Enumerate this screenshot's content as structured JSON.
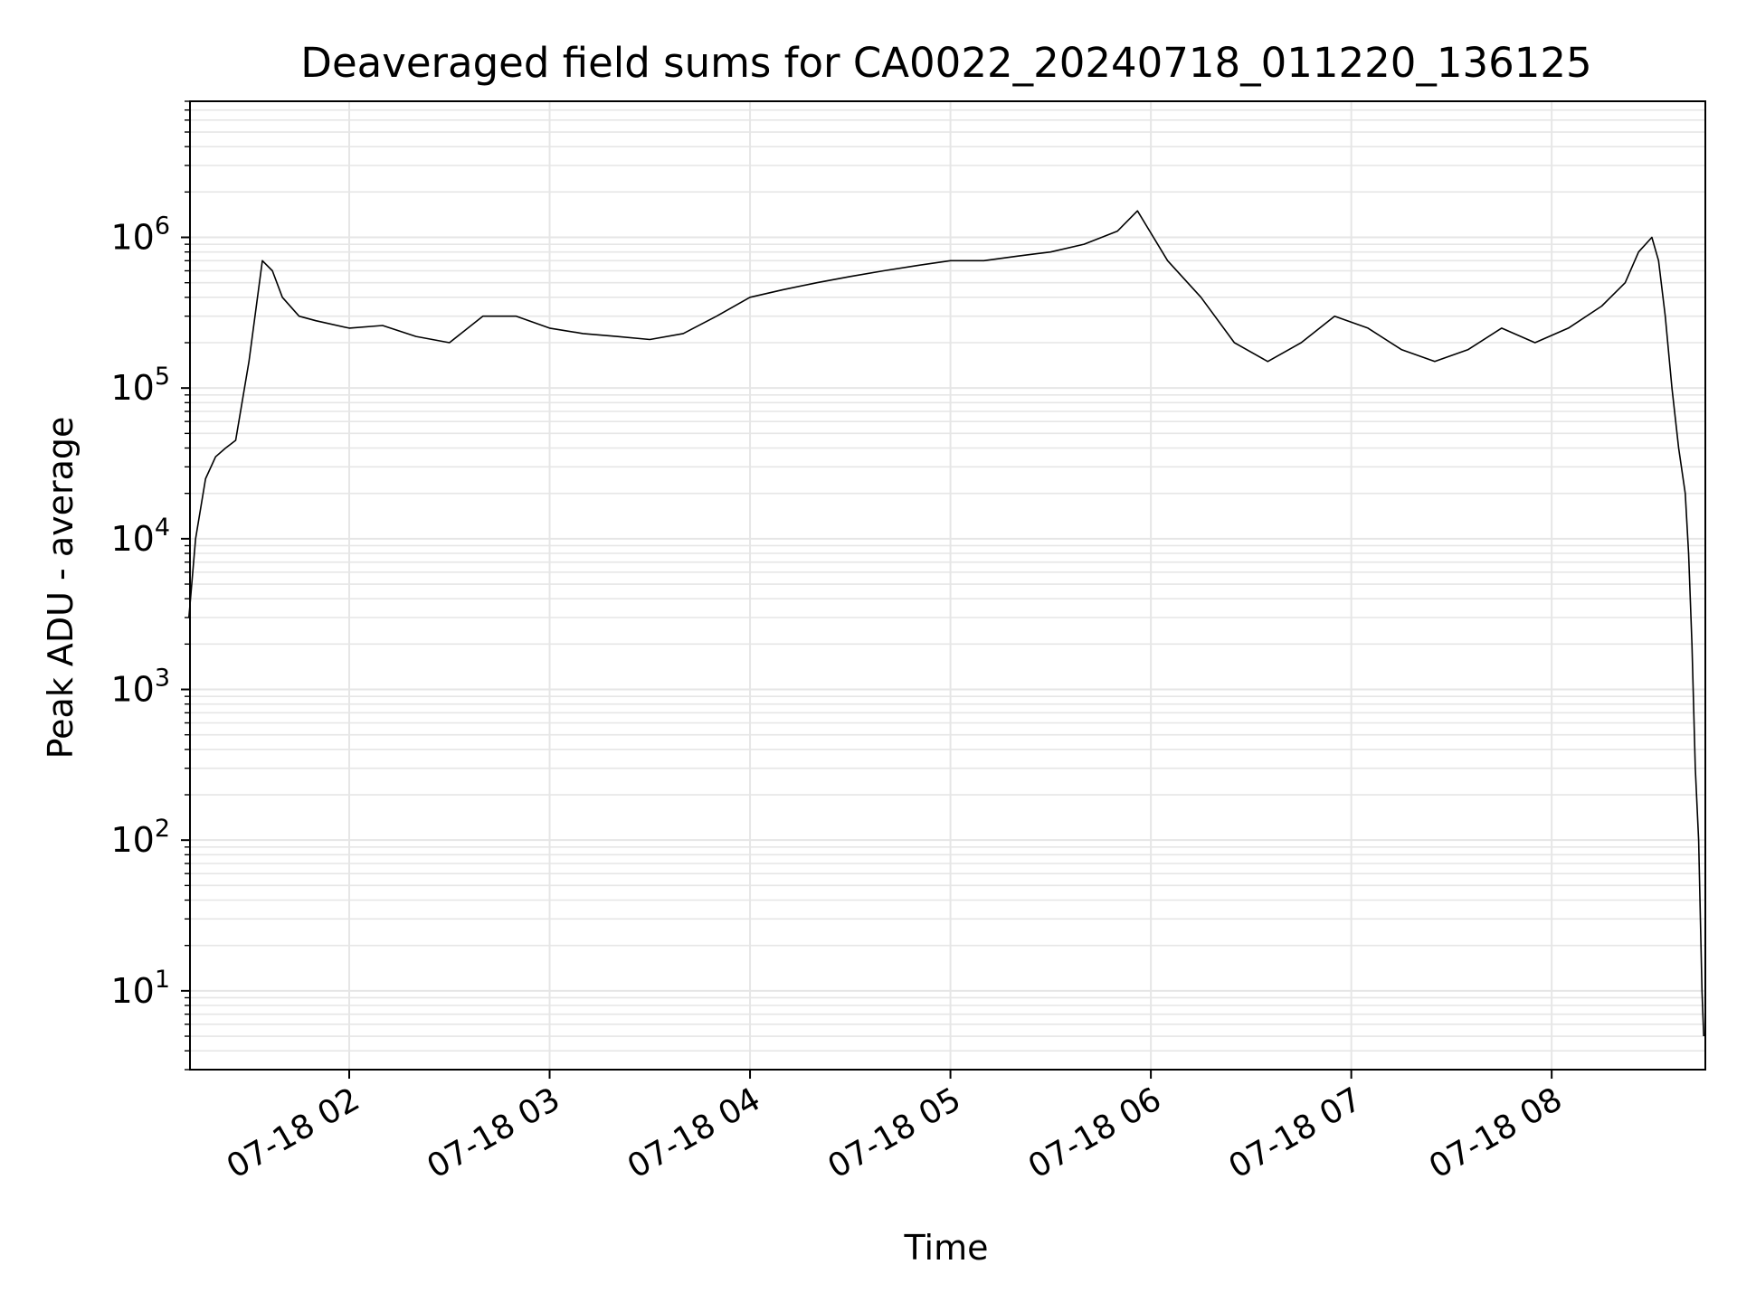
{
  "chart_data": {
    "type": "line",
    "title": "Deaveraged field sums for CA0022_20240718_011220_136125",
    "xlabel": "Time",
    "ylabel": "Peak ADU - average",
    "yscale": "log",
    "grid": true,
    "legend": "none",
    "xlim": [
      "2024-07-18 01:12:20",
      "2024-07-18 08:46:00"
    ],
    "ylim": [
      3,
      8000000
    ],
    "x_tick_labels": [
      "07-18 02",
      "07-18 03",
      "07-18 04",
      "07-18 05",
      "07-18 06",
      "07-18 07",
      "07-18 08"
    ],
    "x_tick_values": [
      "2024-07-18 02:00",
      "2024-07-18 03:00",
      "2024-07-18 04:00",
      "2024-07-18 05:00",
      "2024-07-18 06:00",
      "2024-07-18 07:00",
      "2024-07-18 08:00"
    ],
    "y_tick_labels": [
      {
        "base": "10",
        "exp": "1",
        "value": 10
      },
      {
        "base": "10",
        "exp": "2",
        "value": 100
      },
      {
        "base": "10",
        "exp": "3",
        "value": 1000
      },
      {
        "base": "10",
        "exp": "4",
        "value": 10000
      },
      {
        "base": "10",
        "exp": "5",
        "value": 100000
      },
      {
        "base": "10",
        "exp": "6",
        "value": 1000000
      }
    ],
    "line_color": "#000000",
    "grid_color": "#e6e6e6",
    "series": [
      {
        "x": [
          "2024-07-18 01:12",
          "2024-07-18 01:14",
          "2024-07-18 01:17",
          "2024-07-18 01:20",
          "2024-07-18 01:23",
          "2024-07-18 01:26",
          "2024-07-18 01:30",
          "2024-07-18 01:34",
          "2024-07-18 01:37",
          "2024-07-18 01:40",
          "2024-07-18 01:45",
          "2024-07-18 01:50",
          "2024-07-18 02:00",
          "2024-07-18 02:10",
          "2024-07-18 02:20",
          "2024-07-18 02:30",
          "2024-07-18 02:40",
          "2024-07-18 02:50",
          "2024-07-18 03:00",
          "2024-07-18 03:10",
          "2024-07-18 03:20",
          "2024-07-18 03:30",
          "2024-07-18 03:40",
          "2024-07-18 03:50",
          "2024-07-18 04:00",
          "2024-07-18 04:10",
          "2024-07-18 04:20",
          "2024-07-18 04:30",
          "2024-07-18 04:40",
          "2024-07-18 04:50",
          "2024-07-18 05:00",
          "2024-07-18 05:10",
          "2024-07-18 05:20",
          "2024-07-18 05:30",
          "2024-07-18 05:40",
          "2024-07-18 05:50",
          "2024-07-18 05:56",
          "2024-07-18 06:05",
          "2024-07-18 06:15",
          "2024-07-18 06:25",
          "2024-07-18 06:35",
          "2024-07-18 06:45",
          "2024-07-18 06:55",
          "2024-07-18 07:05",
          "2024-07-18 07:15",
          "2024-07-18 07:25",
          "2024-07-18 07:35",
          "2024-07-18 07:45",
          "2024-07-18 07:55",
          "2024-07-18 08:05",
          "2024-07-18 08:15",
          "2024-07-18 08:22",
          "2024-07-18 08:26",
          "2024-07-18 08:30",
          "2024-07-18 08:32",
          "2024-07-18 08:34",
          "2024-07-18 08:36",
          "2024-07-18 08:38",
          "2024-07-18 08:40",
          "2024-07-18 08:41",
          "2024-07-18 08:42",
          "2024-07-18 08:43",
          "2024-07-18 08:44",
          "2024-07-18 08:45",
          "2024-07-18 08:45:30"
        ],
        "y": [
          3000,
          10000,
          25000,
          35000,
          40000,
          45000,
          150000,
          700000,
          600000,
          400000,
          300000,
          280000,
          250000,
          260000,
          220000,
          200000,
          300000,
          300000,
          250000,
          230000,
          220000,
          210000,
          230000,
          300000,
          400000,
          450000,
          500000,
          550000,
          600000,
          650000,
          700000,
          700000,
          750000,
          800000,
          900000,
          1100000,
          1500000,
          700000,
          400000,
          200000,
          150000,
          200000,
          300000,
          250000,
          180000,
          150000,
          180000,
          250000,
          200000,
          250000,
          350000,
          500000,
          800000,
          1000000,
          700000,
          300000,
          100000,
          40000,
          20000,
          8000,
          2000,
          300,
          100,
          10,
          5
        ]
      }
    ]
  }
}
